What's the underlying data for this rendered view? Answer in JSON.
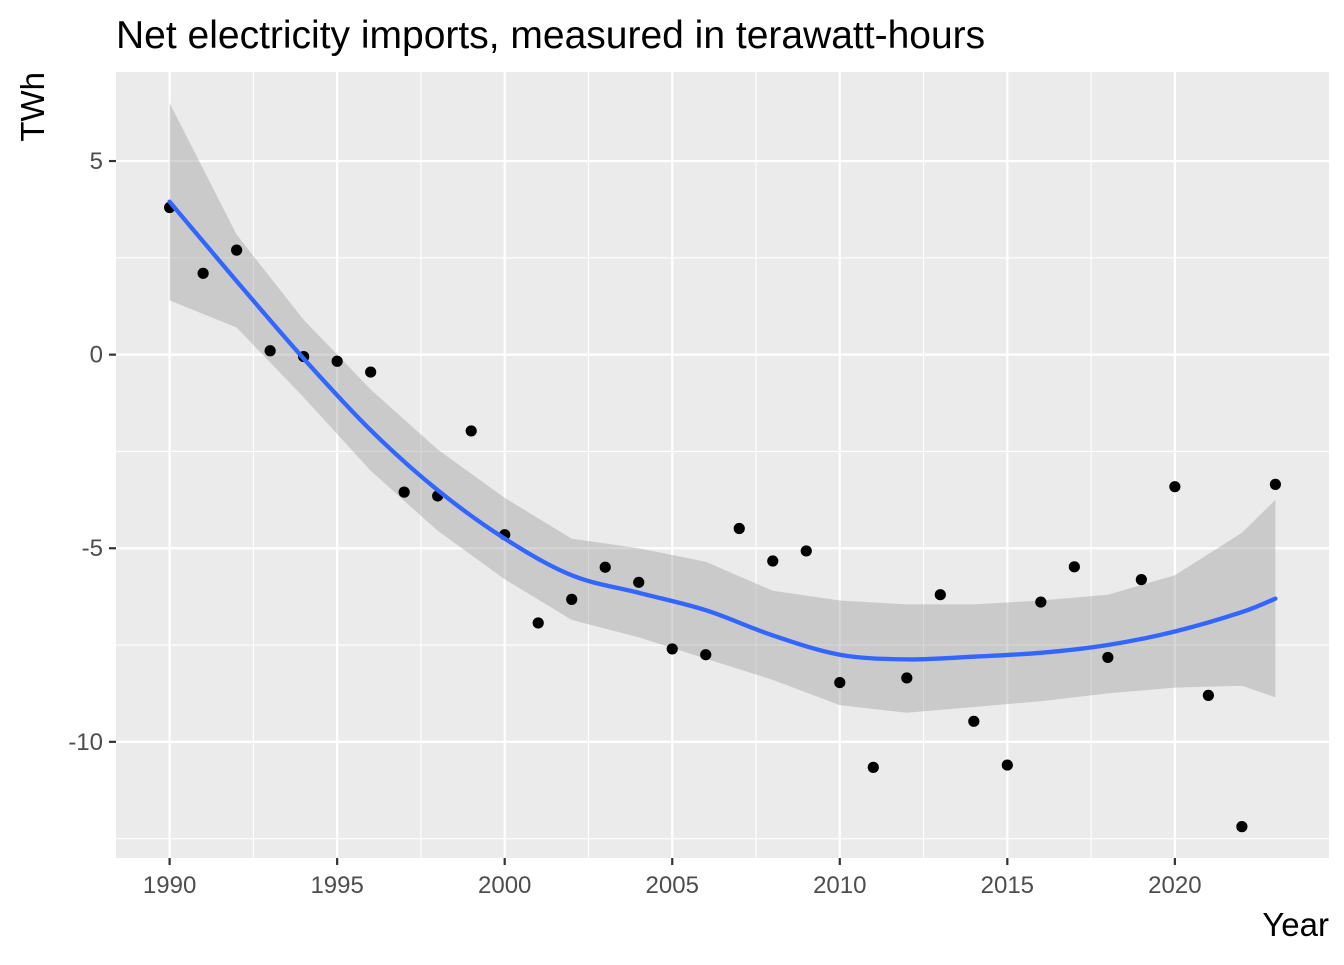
{
  "chart_data": {
    "type": "scatter",
    "title": "Net electricity imports, measured in terawatt-hours",
    "xlabel": "Year",
    "ylabel": "TWh",
    "xlim": [
      1988.4,
      2024.6
    ],
    "ylim": [
      -13.0,
      7.3
    ],
    "x_ticks": [
      1990,
      1995,
      2000,
      2005,
      2010,
      2015,
      2020
    ],
    "x_tick_labels": [
      "1990",
      "1995",
      "2000",
      "2005",
      "2010",
      "2015",
      "2020"
    ],
    "y_ticks": [
      5,
      0,
      -5,
      -10
    ],
    "y_tick_labels": [
      "5",
      "0",
      "-5",
      "-10"
    ],
    "grid": true,
    "panel_background": "#ebebeb",
    "grid_color": "#ffffff",
    "point_color": "#000000",
    "smooth_color": "#3366ff",
    "ribbon_color": "#999999",
    "series": [
      {
        "kind": "points",
        "x": [
          1990,
          1991,
          1992,
          1993,
          1994,
          1995,
          1996,
          1997,
          1998,
          1999,
          2000,
          2001,
          2002,
          2003,
          2004,
          2005,
          2006,
          2007,
          2008,
          2009,
          2010,
          2011,
          2012,
          2013,
          2014,
          2015,
          2016,
          2017,
          2018,
          2019,
          2020,
          2021,
          2022,
          2023
        ],
        "y": [
          3.8,
          2.1,
          2.7,
          0.1,
          -0.05,
          -0.17,
          -0.45,
          -3.55,
          -3.65,
          -1.97,
          -4.65,
          -6.93,
          -6.32,
          -5.49,
          -5.88,
          -7.6,
          -7.75,
          -4.49,
          -5.33,
          -5.07,
          -8.47,
          -10.66,
          -8.35,
          -6.2,
          -9.47,
          -10.6,
          -6.39,
          -5.48,
          -7.82,
          -5.81,
          -3.41,
          -8.8,
          -12.19,
          -3.35
        ]
      },
      {
        "kind": "smooth",
        "x": [
          1990,
          1992,
          1994,
          1996,
          1998,
          2000,
          2002,
          2004,
          2006,
          2008,
          2010,
          2012,
          2014,
          2016,
          2018,
          2020,
          2022,
          2023
        ],
        "y": [
          3.95,
          1.9,
          -0.1,
          -1.95,
          -3.5,
          -4.75,
          -5.7,
          -6.15,
          -6.6,
          -7.25,
          -7.75,
          -7.87,
          -7.8,
          -7.7,
          -7.5,
          -7.15,
          -6.65,
          -6.3
        ],
        "upper": [
          6.5,
          3.1,
          0.9,
          -0.9,
          -2.45,
          -3.7,
          -4.75,
          -5.0,
          -5.35,
          -6.1,
          -6.35,
          -6.45,
          -6.45,
          -6.35,
          -6.2,
          -5.7,
          -4.6,
          -3.75
        ],
        "lower": [
          1.4,
          0.7,
          -1.1,
          -3.0,
          -4.55,
          -5.8,
          -6.85,
          -7.3,
          -7.85,
          -8.4,
          -9.05,
          -9.25,
          -9.1,
          -8.95,
          -8.75,
          -8.6,
          -8.55,
          -8.85
        ]
      }
    ]
  }
}
